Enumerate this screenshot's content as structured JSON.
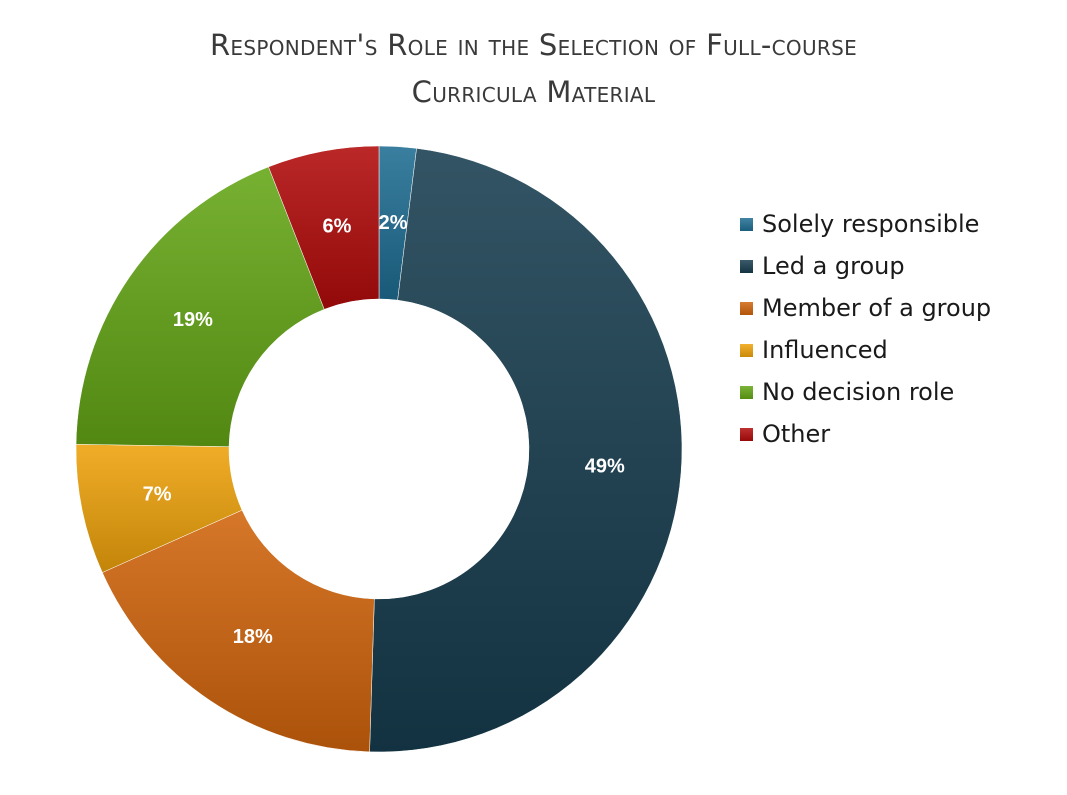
{
  "chart_data": {
    "type": "pie",
    "style": "donut",
    "title": "Respondent's Role in the Selection of Full-course Curricula Material",
    "title_lines": [
      "Respondent's Role in the Selection of Full-course",
      "Curricula Material"
    ],
    "legend_position": "right",
    "slices": [
      {
        "label": "Solely responsible",
        "value": 2,
        "display": "2%",
        "color": "#1f6d92"
      },
      {
        "label": "Led a group",
        "value": 49,
        "display": "49%",
        "color": "#173d4f"
      },
      {
        "label": "Member of a group",
        "value": 18,
        "display": "18%",
        "color": "#d0640c"
      },
      {
        "label": "Influenced",
        "value": 7,
        "display": "7%",
        "color": "#eea20b"
      },
      {
        "label": "No decision role",
        "value": 19,
        "display": "19%",
        "color": "#64a616"
      },
      {
        "label": "Other",
        "value": 6,
        "display": "6%",
        "color": "#b20b0b"
      }
    ]
  }
}
